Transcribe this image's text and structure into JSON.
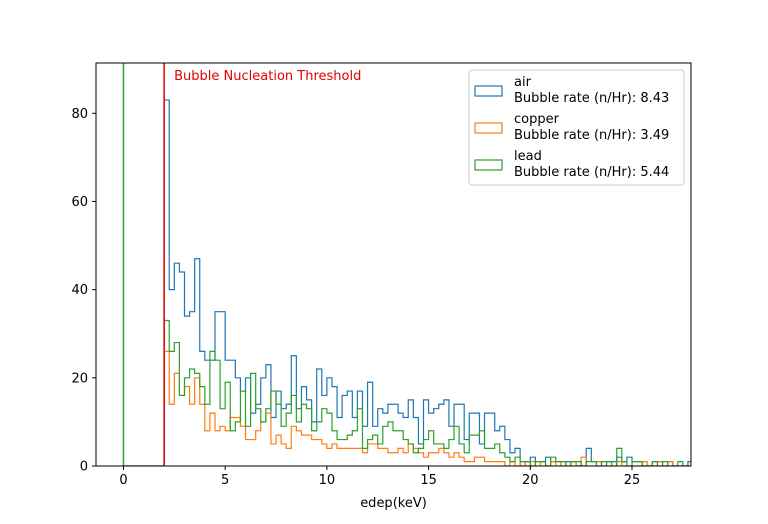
{
  "chart_data": {
    "type": "histogram-step",
    "xlabel": "edep(keV)",
    "ylabel": "",
    "xlim": [
      -1.35,
      27.9
    ],
    "ylim": [
      0,
      91.4
    ],
    "xticks": [
      0,
      5,
      10,
      15,
      20,
      25
    ],
    "yticks": [
      0,
      20,
      40,
      60,
      80
    ],
    "grid": false,
    "legend_position": "upper right",
    "bin_width": 0.25,
    "bin_start": 2.0,
    "threshold": {
      "x": 2.0,
      "label": "Bubble Nucleation Threshold",
      "color": "#e00000"
    },
    "series": [
      {
        "name": "air",
        "rate_label": "Bubble rate (n/Hr): 8.43",
        "color": "#1f77b4",
        "values": [
          83,
          40,
          46,
          44,
          34,
          35,
          47,
          26,
          24,
          24,
          35,
          35,
          24,
          24,
          20,
          17,
          20,
          12,
          14,
          20,
          23,
          11,
          17,
          13,
          14,
          25,
          13,
          18,
          15,
          10,
          22,
          16,
          20,
          18,
          11,
          16,
          17,
          11,
          17,
          9,
          19,
          9,
          13,
          12,
          14,
          14,
          12,
          11,
          15,
          11,
          5,
          15,
          12,
          13,
          14,
          15,
          9,
          14,
          14,
          6,
          12,
          12,
          5,
          12,
          12,
          8,
          9,
          6,
          3,
          4,
          0,
          1,
          2,
          1,
          1,
          2,
          1,
          1,
          0,
          1,
          1,
          0,
          0,
          4,
          1,
          1,
          0,
          1,
          1,
          2,
          1,
          2,
          1,
          1,
          0,
          0,
          1,
          1,
          0,
          1,
          0,
          0,
          0,
          1,
          0,
          0,
          0,
          0,
          0,
          0,
          0,
          1
        ],
        "zero_line_from": 0
      },
      {
        "name": "copper",
        "rate_label": "Bubble rate (n/Hr): 3.49",
        "color": "#ff7f0e",
        "values": [
          26,
          14,
          21,
          16,
          18,
          14,
          20,
          14,
          8,
          12,
          8,
          9,
          8,
          11,
          11,
          9,
          6,
          6,
          8,
          10,
          12,
          5,
          7,
          5,
          4,
          9,
          8,
          7,
          7,
          6,
          6,
          5,
          4,
          5,
          4,
          4,
          4,
          4,
          4,
          3,
          5,
          5,
          4,
          4,
          3,
          3,
          4,
          3,
          5,
          4,
          3,
          2,
          3,
          3,
          4,
          3,
          2,
          3,
          2,
          1,
          1,
          2,
          2,
          1,
          1,
          1,
          1,
          0,
          1,
          0,
          1,
          0,
          1,
          0,
          1,
          0,
          1,
          0,
          1,
          0,
          1,
          0,
          2,
          0,
          0,
          1,
          0,
          0,
          0,
          1,
          0,
          0,
          0,
          0,
          1,
          0,
          0,
          1,
          0,
          1
        ],
        "zero_line_from": 2.0
      },
      {
        "name": "lead",
        "rate_label": "Bubble rate (n/Hr): 5.44",
        "color": "#2ca02c",
        "values": [
          33,
          26,
          28,
          16,
          20,
          22,
          21,
          18,
          14,
          26,
          24,
          13,
          19,
          8,
          10,
          17,
          9,
          21,
          13,
          10,
          13,
          17,
          14,
          9,
          12,
          16,
          10,
          14,
          13,
          8,
          10,
          13,
          12,
          8,
          6,
          6,
          7,
          8,
          13,
          4,
          6,
          7,
          5,
          9,
          10,
          8,
          8,
          6,
          5,
          3,
          4,
          6,
          8,
          5,
          5,
          4,
          6,
          9,
          5,
          3,
          7,
          7,
          8,
          4,
          4,
          5,
          3,
          2,
          1,
          2,
          1,
          1,
          0,
          1,
          1,
          0,
          2,
          1,
          1,
          0,
          1,
          1,
          0,
          1,
          1,
          0,
          1,
          1,
          0,
          4,
          1,
          0,
          1,
          1,
          0,
          0,
          1,
          0,
          1,
          0,
          0,
          1,
          0,
          0,
          0,
          1,
          0,
          0,
          1,
          1,
          1
        ],
        "zero_line_from": 0
      }
    ]
  }
}
